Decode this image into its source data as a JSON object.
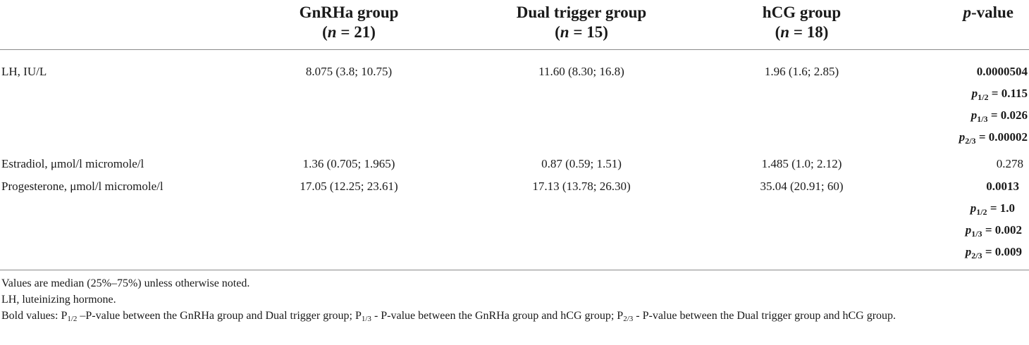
{
  "table": {
    "headers": [
      {
        "line1": "",
        "line2": ""
      },
      {
        "line1": "GnRHa group",
        "line2": "(n = 21)"
      },
      {
        "line1": "Dual trigger group",
        "line2": "(n = 15)"
      },
      {
        "line1": "hCG group",
        "line2": "(n = 18)"
      },
      {
        "line1": "p-value",
        "line2": ""
      }
    ],
    "header_n": {
      "gnrha_n": "21",
      "dual_n": "15",
      "hcg_n": "18"
    },
    "rows": [
      {
        "label": "LH, IU/L",
        "gnrha": "8.075 (3.8; 10.75)",
        "dual": "11.60 (8.30; 16.8)",
        "hcg": "1.96 (1.6; 2.85)",
        "p_overall": "0.0000504",
        "p12": "0.115",
        "p13": "0.026",
        "p23": "0.00002"
      },
      {
        "label": "Estradiol, μmol/l micromole/l",
        "gnrha": "1.36 (0.705; 1.965)",
        "dual": "0.87 (0.59; 1.51)",
        "hcg": "1.485 (1.0; 2.12)",
        "p_overall": "0.278"
      },
      {
        "label": "Progesterone, μmol/l micromole/l",
        "gnrha": "17.05 (12.25; 23.61)",
        "dual": "17.13 (13.78; 26.30)",
        "hcg": "35.04 (20.91; 60)",
        "p_overall": "0.0013",
        "p12": "1.0",
        "p13": "0.002",
        "p23": "0.009"
      }
    ]
  },
  "pvalue_labels": {
    "p": "p",
    "sub12": "1/2",
    "sub13": "1/3",
    "sub23": "2/3",
    "eq": " = "
  },
  "notes": {
    "note1": "Values are median (25%–75%) unless otherwise noted.",
    "note2": "LH, luteinizing hormone.",
    "note3_a": "Bold values: P",
    "note3_sub1": "1/2",
    "note3_b": " –P-value between the GnRHa group and Dual trigger group; P",
    "note3_sub2": "1/3",
    "note3_c": " - P-value between the GnRHa group and hCG group; P",
    "note3_sub3": "2/3",
    "note3_d": " - P-value between the Dual trigger group and hCG group."
  }
}
